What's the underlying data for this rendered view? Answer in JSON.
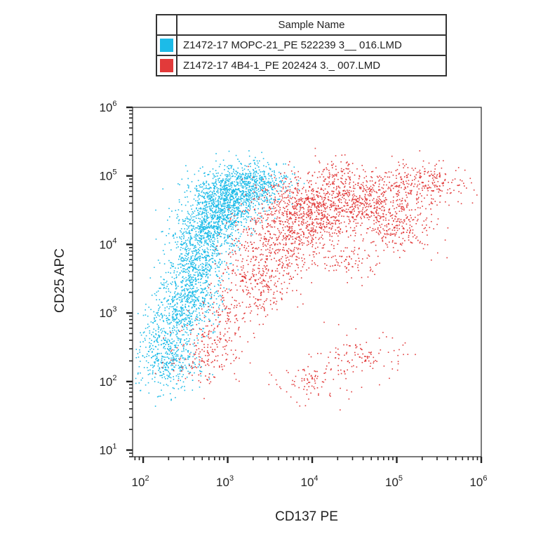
{
  "legend": {
    "header": "Sample Name",
    "entries": [
      {
        "name": "Z1472-17 MOPC-21_PE 522239 3__ 016.LMD",
        "color": "#1cbbe8"
      },
      {
        "name": "Z1472-17 4B4-1_PE 202424 3._ 007.LMD",
        "color": "#e23a3a"
      }
    ]
  },
  "chart_data": {
    "type": "scatter",
    "xlabel": "CD137 PE",
    "ylabel": "CD25 APC",
    "x_scale": "log",
    "y_scale": "log",
    "xlim": [
      75,
      1000000
    ],
    "ylim": [
      8,
      1000000
    ],
    "x_ticks": [
      {
        "base": "10",
        "exp": "2",
        "value": 100
      },
      {
        "base": "10",
        "exp": "3",
        "value": 1000
      },
      {
        "base": "10",
        "exp": "4",
        "value": 10000
      },
      {
        "base": "10",
        "exp": "5",
        "value": 100000
      },
      {
        "base": "10",
        "exp": "6",
        "value": 1000000
      }
    ],
    "y_ticks": [
      {
        "base": "10",
        "exp": "1",
        "value": 10
      },
      {
        "base": "10",
        "exp": "2",
        "value": 100
      },
      {
        "base": "10",
        "exp": "3",
        "value": 1000
      },
      {
        "base": "10",
        "exp": "4",
        "value": 10000
      },
      {
        "base": "10",
        "exp": "5",
        "value": 100000
      },
      {
        "base": "10",
        "exp": "6",
        "value": 1000000
      }
    ],
    "grid": false,
    "legend_position": "top",
    "series": [
      {
        "name": "Z1472-17 MOPC-21_PE 522239 3__ 016.LMD",
        "color": "#1cbbe8",
        "points": [
          [
            700,
            30000
          ],
          [
            500,
            20000
          ],
          [
            900,
            45000
          ],
          [
            1200,
            60000
          ],
          [
            400,
            8000
          ],
          [
            600,
            12000
          ],
          [
            350,
            3000
          ],
          [
            450,
            1500
          ],
          [
            300,
            800
          ],
          [
            250,
            200
          ],
          [
            220,
            150
          ],
          [
            550,
            5000
          ],
          [
            800,
            25000
          ],
          [
            1000,
            35000
          ],
          [
            1500,
            55000
          ],
          [
            2000,
            70000
          ],
          [
            2500,
            90000
          ],
          [
            3000,
            80000
          ],
          [
            650,
            40000
          ],
          [
            350,
            15000
          ],
          [
            280,
            1200
          ],
          [
            320,
            2500
          ],
          [
            420,
            6000
          ],
          [
            750,
            18000
          ],
          [
            180,
            400
          ],
          [
            150,
            200
          ],
          [
            200,
            800
          ],
          [
            1100,
            50000
          ],
          [
            1300,
            75000
          ],
          [
            600,
            65000
          ]
        ]
      },
      {
        "name": "Z1472-17 4B4-1_PE 202424 3._ 007.LMD",
        "color": "#e23a3a",
        "points": [
          [
            5000,
            30000
          ],
          [
            8000,
            40000
          ],
          [
            3000,
            20000
          ],
          [
            12000,
            35000
          ],
          [
            20000,
            50000
          ],
          [
            40000,
            60000
          ],
          [
            6000,
            15000
          ],
          [
            2000,
            8000
          ],
          [
            1500,
            3000
          ],
          [
            1000,
            1000
          ],
          [
            700,
            400
          ],
          [
            500,
            200
          ],
          [
            15000,
            25000
          ],
          [
            30000,
            45000
          ],
          [
            60000,
            40000
          ],
          [
            100000,
            70000
          ],
          [
            200000,
            80000
          ],
          [
            300000,
            70000
          ],
          [
            10000,
            20000
          ],
          [
            7000,
            10000
          ],
          [
            4000,
            5000
          ],
          [
            2500,
            2000
          ],
          [
            50000,
            30000
          ],
          [
            80000,
            20000
          ],
          [
            45000,
            230
          ],
          [
            10000,
            110
          ],
          [
            25000,
            6000
          ],
          [
            120000,
            15000
          ],
          [
            18000,
            100000
          ],
          [
            5000,
            60000
          ]
        ]
      }
    ]
  }
}
